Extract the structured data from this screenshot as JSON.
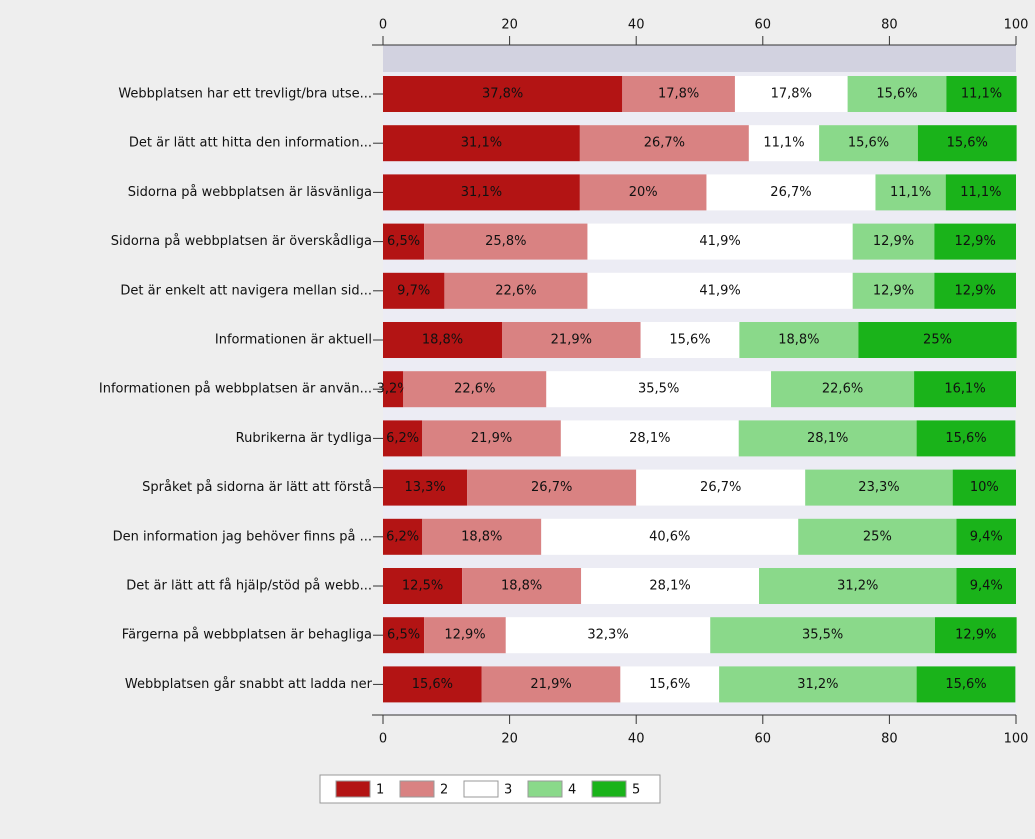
{
  "chart_data": {
    "type": "stacked-bar-horizontal",
    "categories": [
      "Webbplatsen har ett trevligt/bra utse...",
      "Det är lätt att hitta den information...",
      "Sidorna på webbplatsen är läsvänliga",
      "Sidorna på webbplatsen är överskådliga",
      "Det är enkelt att navigera mellan sid...",
      "Informationen är aktuell",
      "Informationen på webbplatsen är använ...",
      "Rubrikerna är tydliga",
      "Språket på sidorna är lätt att förstå",
      "Den information jag behöver finns på ...",
      "Det är lätt att få hjälp/stöd på webb...",
      "Färgerna på webbplatsen är behagliga",
      "Webbplatsen går snabbt att ladda ner"
    ],
    "series": [
      {
        "name": "1",
        "color": "#b31414",
        "values": [
          37.8,
          31.1,
          31.1,
          6.5,
          9.7,
          18.8,
          3.2,
          6.2,
          13.3,
          6.2,
          12.5,
          6.5,
          15.6
        ],
        "value_labels": [
          "37,8%",
          "31,1%",
          "31,1%",
          "6,5%",
          "9,7%",
          "18,8%",
          "3,2%",
          "6,2%",
          "13,3%",
          "6,2%",
          "12,5%",
          "6,5%",
          "15,6%"
        ]
      },
      {
        "name": "2",
        "color": "#d98282",
        "values": [
          17.8,
          26.7,
          20,
          25.8,
          22.6,
          21.9,
          22.6,
          21.9,
          26.7,
          18.8,
          18.8,
          12.9,
          21.9
        ],
        "value_labels": [
          "17,8%",
          "26,7%",
          "20%",
          "25,8%",
          "22,6%",
          "21,9%",
          "22,6%",
          "21,9%",
          "26,7%",
          "18,8%",
          "18,8%",
          "12,9%",
          "21,9%"
        ]
      },
      {
        "name": "3",
        "color": "#ffffff",
        "values": [
          17.8,
          11.1,
          26.7,
          41.9,
          41.9,
          15.6,
          35.5,
          28.1,
          26.7,
          40.6,
          28.1,
          32.3,
          15.6
        ],
        "value_labels": [
          "17,8%",
          "11,1%",
          "26,7%",
          "41,9%",
          "41,9%",
          "15,6%",
          "35,5%",
          "28,1%",
          "26,7%",
          "40,6%",
          "28,1%",
          "32,3%",
          "15,6%"
        ]
      },
      {
        "name": "4",
        "color": "#8ad98a",
        "values": [
          15.6,
          15.6,
          11.1,
          12.9,
          12.9,
          18.8,
          22.6,
          28.1,
          23.3,
          25,
          31.2,
          35.5,
          31.2
        ],
        "value_labels": [
          "15,6%",
          "15,6%",
          "11,1%",
          "12,9%",
          "12,9%",
          "18,8%",
          "22,6%",
          "28,1%",
          "23,3%",
          "25%",
          "31,2%",
          "35,5%",
          "31,2%"
        ]
      },
      {
        "name": "5",
        "color": "#1ab31a",
        "values": [
          11.1,
          15.6,
          11.1,
          12.9,
          12.9,
          25,
          16.1,
          15.6,
          10,
          9.4,
          9.4,
          12.9,
          15.6
        ],
        "value_labels": [
          "11,1%",
          "15,6%",
          "11,1%",
          "12,9%",
          "12,9%",
          "25%",
          "16,1%",
          "15,6%",
          "10%",
          "9,4%",
          "9,4%",
          "12,9%",
          "15,6%"
        ]
      }
    ],
    "xlim": [
      0,
      100
    ],
    "xticks": [
      0,
      20,
      40,
      60,
      80,
      100
    ],
    "legend": "bottom"
  }
}
